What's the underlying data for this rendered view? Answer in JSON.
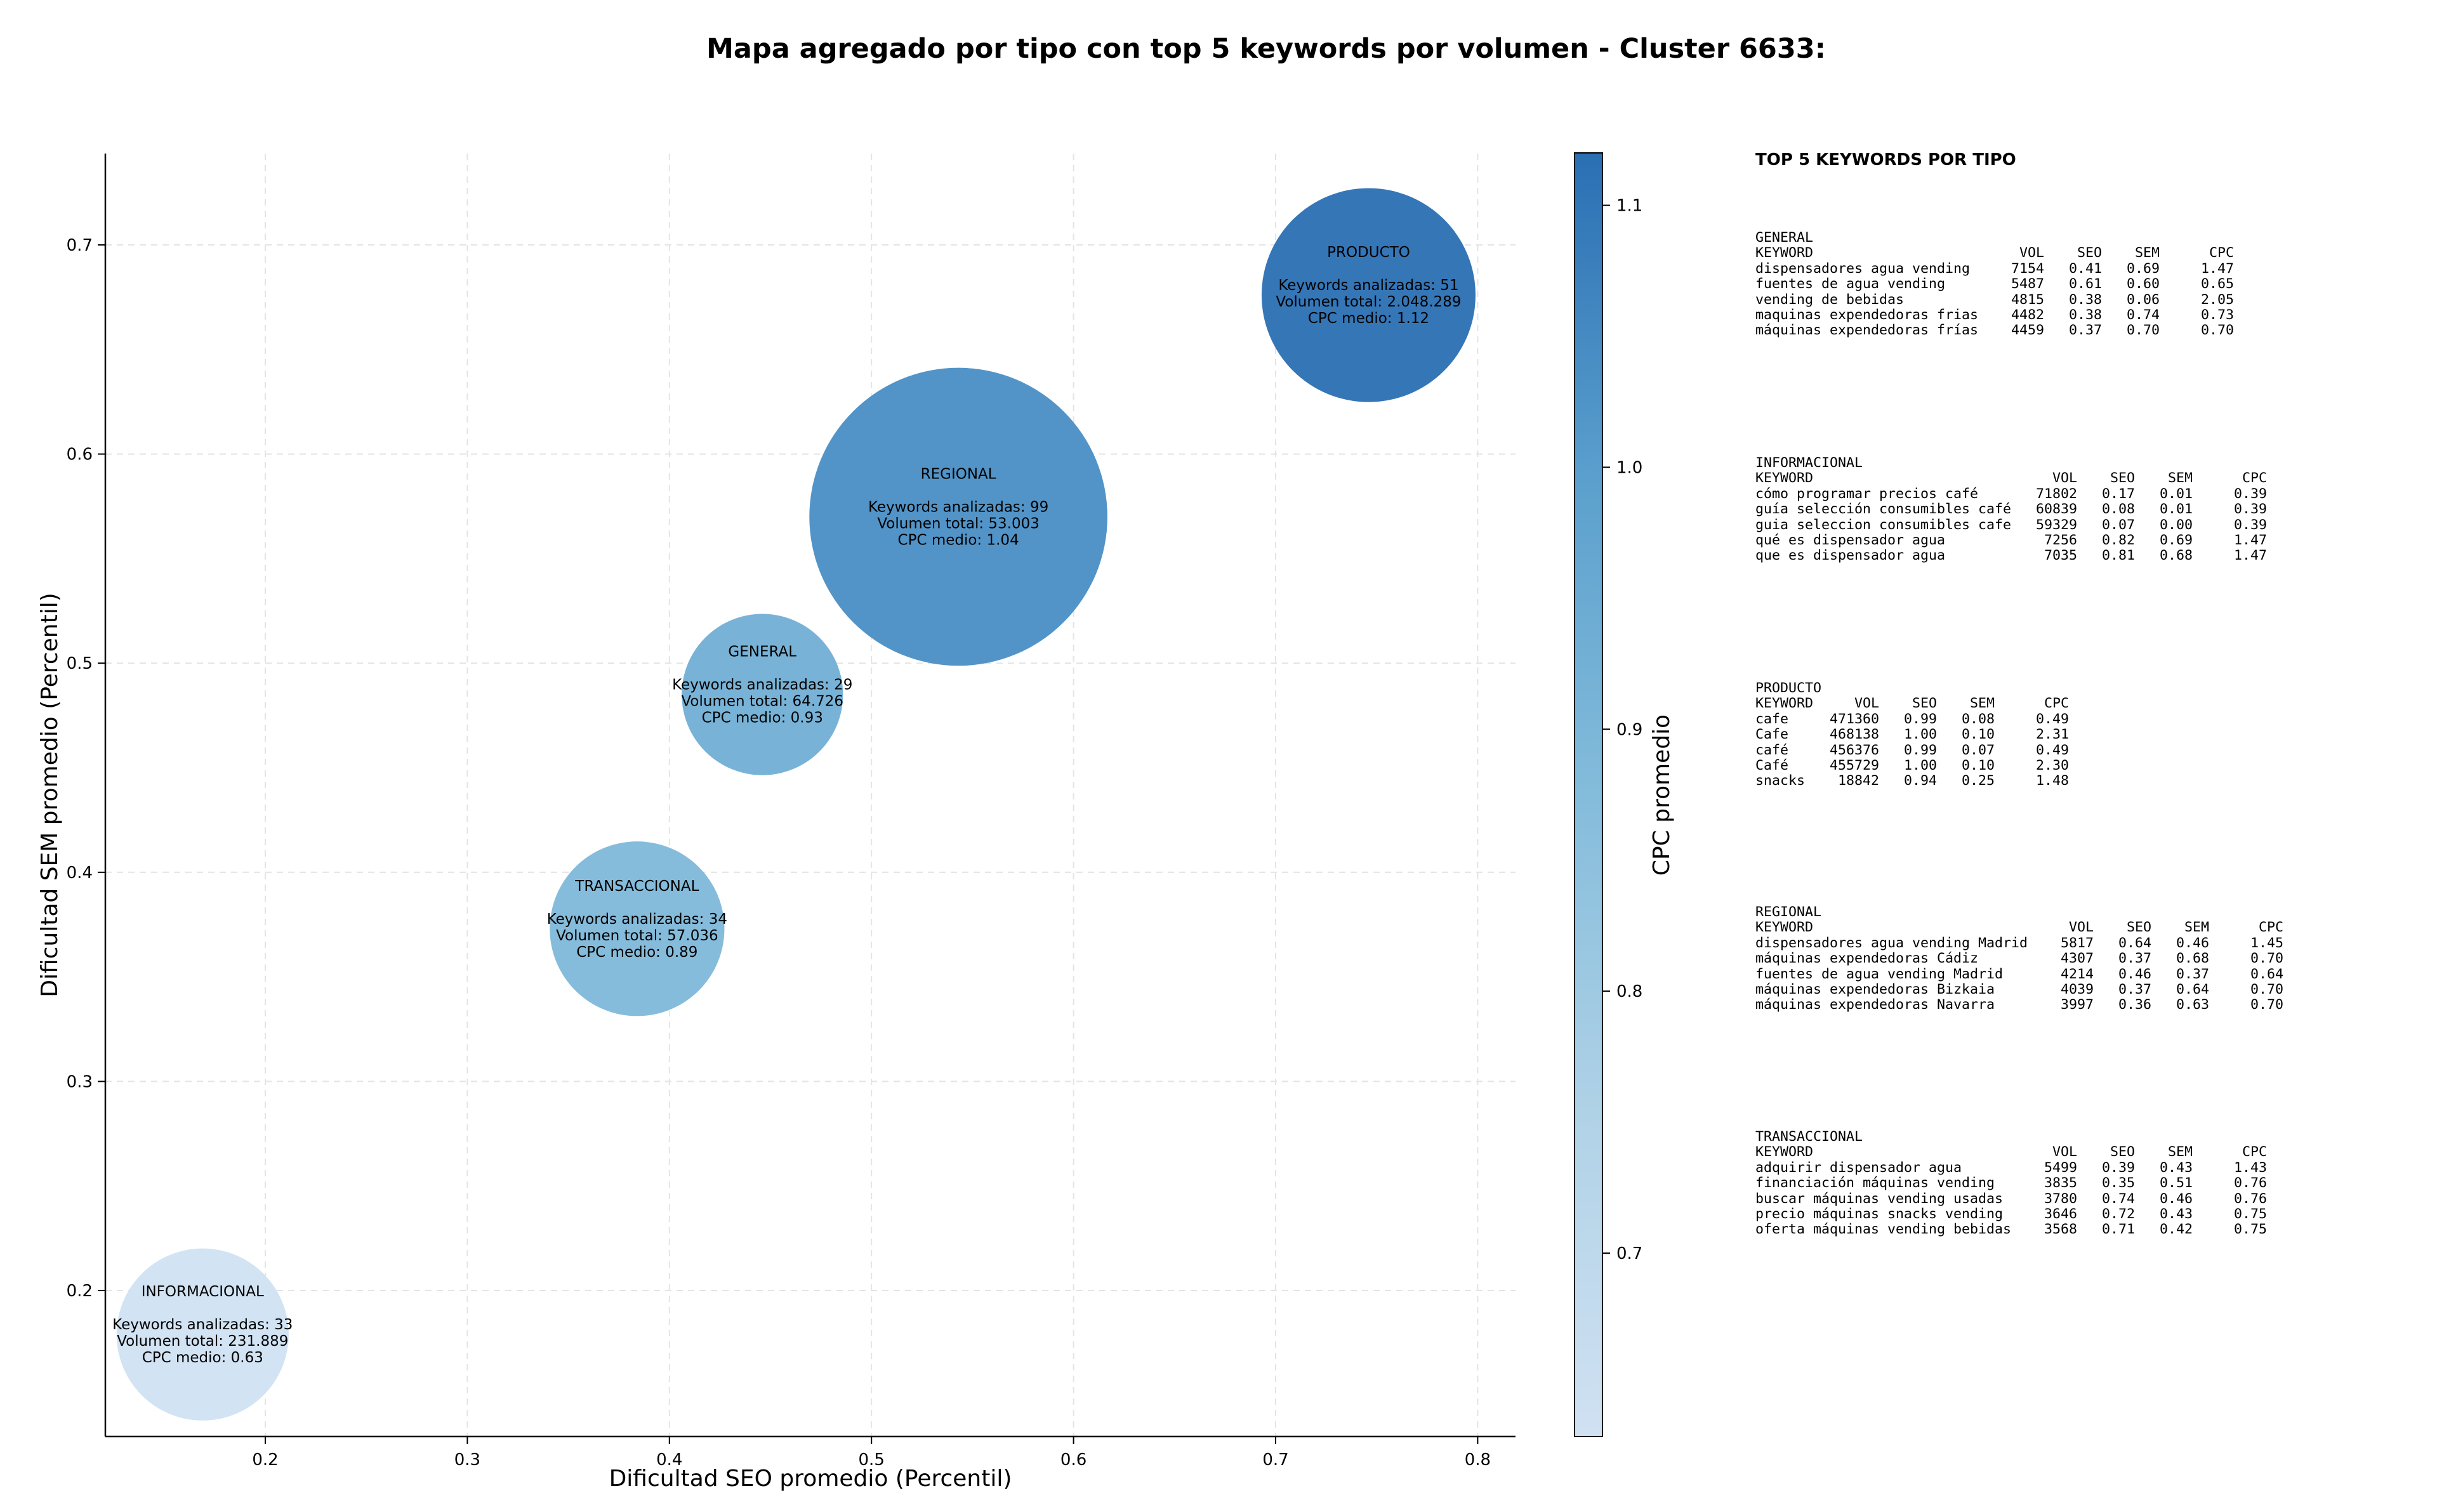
{
  "title": "Mapa agregado por tipo con top 5 keywords por volumen - Cluster 6633:",
  "chart_data": {
    "type": "scatter",
    "subtype": "bubble",
    "xlabel": "Dificultad SEO promedio (Percentil)",
    "ylabel": "Dificultad SEM promedio (Percentil)",
    "xlim": [
      0.12,
      0.82
    ],
    "ylim": [
      0.13,
      0.745
    ],
    "x_ticks": [
      "0.2",
      "0.3",
      "0.4",
      "0.5",
      "0.6",
      "0.7",
      "0.8"
    ],
    "y_ticks": [
      "0.2",
      "0.3",
      "0.4",
      "0.5",
      "0.6",
      "0.7"
    ],
    "grid": true,
    "colorbar": {
      "label": "CPC promedio",
      "range": [
        0.63,
        1.12
      ],
      "ticks": [
        "0.7",
        "0.8",
        "0.9",
        "1.0",
        "1.1"
      ],
      "colors": [
        "#d0e1f2",
        "#2a6fb3"
      ]
    },
    "points": [
      {
        "label": "PRODUCTO",
        "x": 0.746,
        "y": 0.676,
        "cpc": 1.12,
        "count": 51,
        "lines": [
          "Keywords analizadas: 51",
          "Volumen total: 2.048.289",
          "CPC medio: 1.12"
        ]
      },
      {
        "label": "REGIONAL",
        "x": 0.543,
        "y": 0.57,
        "cpc": 1.04,
        "count": 99,
        "lines": [
          "Keywords analizadas: 99",
          "Volumen total: 53.003",
          "CPC medio: 1.04"
        ]
      },
      {
        "label": "GENERAL",
        "x": 0.446,
        "y": 0.485,
        "cpc": 0.93,
        "count": 29,
        "lines": [
          "Keywords analizadas: 29",
          "Volumen total: 64.726",
          "CPC medio: 0.93"
        ]
      },
      {
        "label": "TRANSACCIONAL",
        "x": 0.384,
        "y": 0.373,
        "cpc": 0.89,
        "count": 34,
        "lines": [
          "Keywords analizadas: 34",
          "Volumen total: 57.036",
          "CPC medio: 0.89"
        ]
      },
      {
        "label": "INFORMACIONAL",
        "x": 0.169,
        "y": 0.179,
        "cpc": 0.63,
        "count": 33,
        "lines": [
          "Keywords analizadas: 33",
          "Volumen total: 231.889",
          "CPC medio: 0.63"
        ]
      }
    ]
  },
  "side_panel": {
    "title": "TOP 5 KEYWORDS POR TIPO",
    "blocks": [
      {
        "lines": [
          "GENERAL",
          "KEYWORD                         VOL    SEO    SEM      CPC",
          "dispensadores agua vending     7154   0.41   0.69     1.47",
          "fuentes de agua vending        5487   0.61   0.60     0.65",
          "vending de bebidas             4815   0.38   0.06     2.05",
          "maquinas expendedoras frias    4482   0.38   0.74     0.73",
          "máquinas expendedoras frías    4459   0.37   0.70     0.70"
        ]
      },
      {
        "lines": [
          "INFORMACIONAL",
          "KEYWORD                             VOL    SEO    SEM      CPC",
          "cómo programar precios café       71802   0.17   0.01     0.39",
          "guía selección consumibles café   60839   0.08   0.01     0.39",
          "guia seleccion consumibles cafe   59329   0.07   0.00     0.39",
          "qué es dispensador agua            7256   0.82   0.69     1.47",
          "que es dispensador agua            7035   0.81   0.68     1.47"
        ]
      },
      {
        "lines": [
          "PRODUCTO",
          "KEYWORD     VOL    SEO    SEM      CPC",
          "cafe     471360   0.99   0.08     0.49",
          "Cafe     468138   1.00   0.10     2.31",
          "café     456376   0.99   0.07     0.49",
          "Café     455729   1.00   0.10     2.30",
          "snacks    18842   0.94   0.25     1.48"
        ]
      },
      {
        "lines": [
          "REGIONAL",
          "KEYWORD                               VOL    SEO    SEM      CPC",
          "dispensadores agua vending Madrid    5817   0.64   0.46     1.45",
          "máquinas expendedoras Cádiz          4307   0.37   0.68     0.70",
          "fuentes de agua vending Madrid       4214   0.46   0.37     0.64",
          "máquinas expendedoras Bizkaia        4039   0.37   0.64     0.70",
          "máquinas expendedoras Navarra        3997   0.36   0.63     0.70"
        ]
      },
      {
        "lines": [
          "TRANSACCIONAL",
          "KEYWORD                             VOL    SEO    SEM      CPC",
          "adquirir dispensador agua          5499   0.39   0.43     1.43",
          "financiación máquinas vending      3835   0.35   0.51     0.76",
          "buscar máquinas vending usadas     3780   0.74   0.46     0.76",
          "precio máquinas snacks vending     3646   0.72   0.43     0.75",
          "oferta máquinas vending bebidas    3568   0.71   0.42     0.75"
        ]
      }
    ]
  }
}
